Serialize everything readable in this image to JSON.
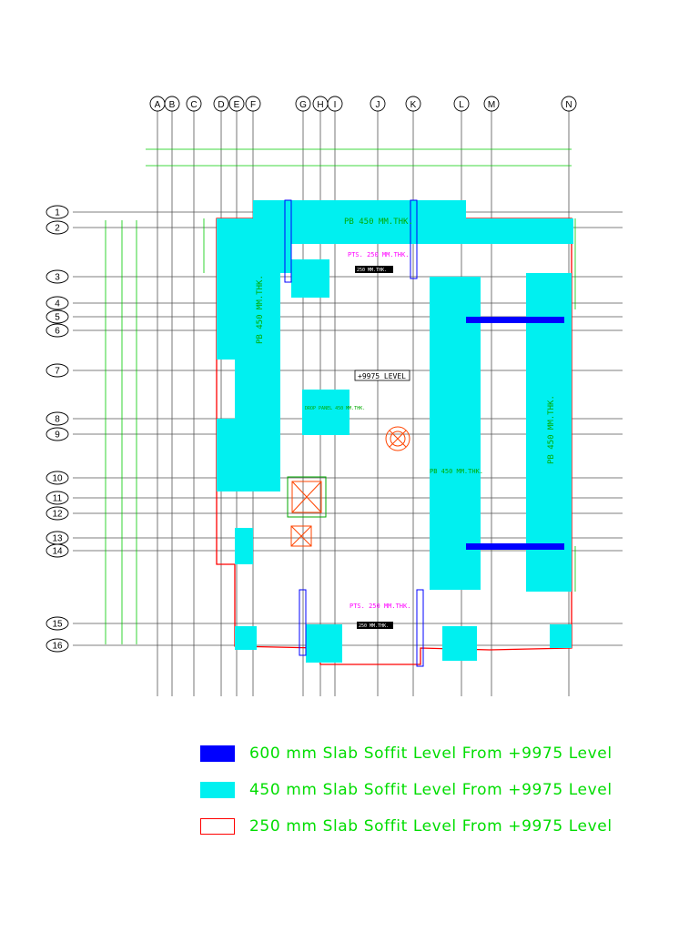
{
  "grid": {
    "columns": [
      "A",
      "B",
      "C",
      "D",
      "E",
      "F",
      "G",
      "H",
      "I",
      "J",
      "K",
      "L",
      "M",
      "N"
    ],
    "rows": [
      "1",
      "2",
      "3",
      "4",
      "5",
      "6",
      "7",
      "8",
      "9",
      "10",
      "11",
      "12",
      "13",
      "14",
      "15",
      "16"
    ]
  },
  "plan_labels": {
    "level": "+9975 LEVEL",
    "pb_top": "PB 450 MM.THK.",
    "pb_left": "PB 450 MM.THK.",
    "pb_mid": "PB 450 MM.THK.",
    "pb_right": "PB 450 MM.THK.",
    "pts_top": "PTS. 250 MM.THK.",
    "pts_bottom": "PTS. 250 MM.THK.",
    "drop_panel": "DROP PANEL 450 MM.THK.",
    "slab_thk_top": "250 MM.THK.",
    "slab_thk_bottom": "250 MM.THK."
  },
  "colors": {
    "slab_600": "#0000ff",
    "slab_450": "#00f0f0",
    "slab_250_outline": "#ff0000",
    "legend_text": "#00dd00",
    "grid_line": "#555555"
  },
  "legend": [
    {
      "label": "600 mm Slab Soffit Level From +9975 Level",
      "fill": "#0000ff",
      "border": "#0000ff"
    },
    {
      "label": "450 mm Slab Soffit Level From +9975 Level",
      "fill": "#00f0f0",
      "border": "#00f0f0"
    },
    {
      "label": "250 mm Slab Soffit Level From +9975 Level",
      "fill": "#ffffff",
      "border": "#ff0000"
    }
  ]
}
